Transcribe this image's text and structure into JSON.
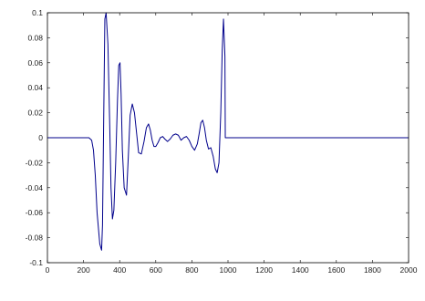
{
  "chart_data": {
    "type": "line",
    "title": "",
    "xlabel": "",
    "ylabel": "",
    "xlim": [
      0,
      2000
    ],
    "ylim": [
      -0.1,
      0.1
    ],
    "grid": false,
    "legend": "none",
    "x_ticks": [
      "0",
      "200",
      "400",
      "600",
      "800",
      "1000",
      "1200",
      "1400",
      "1600",
      "1800",
      "2000"
    ],
    "y_ticks": [
      "0.1",
      "0.08",
      "0.06",
      "0.04",
      "0.02",
      "0",
      "-0.02",
      "-0.04",
      "-0.06",
      "-0.08",
      "-0.1"
    ],
    "series": [
      {
        "color": "#00008b",
        "x": [
          0,
          230,
          245,
          255,
          265,
          275,
          290,
          300,
          305,
          312,
          318,
          325,
          335,
          345,
          352,
          360,
          368,
          378,
          388,
          395,
          402,
          408,
          415,
          425,
          438,
          448,
          458,
          470,
          482,
          495,
          505,
          520,
          535,
          548,
          560,
          570,
          580,
          590,
          600,
          612,
          625,
          638,
          650,
          665,
          680,
          695,
          710,
          725,
          740,
          755,
          770,
          785,
          800,
          815,
          830,
          840,
          850,
          860,
          870,
          880,
          892,
          905,
          918,
          930,
          940,
          950,
          960,
          968,
          975,
          983,
          985,
          2000
        ],
        "y": [
          0,
          0,
          -0.002,
          -0.01,
          -0.03,
          -0.06,
          -0.085,
          -0.09,
          -0.07,
          0.02,
          0.095,
          0.1,
          0.075,
          0.01,
          -0.04,
          -0.065,
          -0.058,
          -0.02,
          0.03,
          0.058,
          0.06,
          0.035,
          -0.01,
          -0.04,
          -0.046,
          -0.015,
          0.018,
          0.027,
          0.02,
          0.002,
          -0.012,
          -0.013,
          -0.003,
          0.008,
          0.011,
          0.006,
          -0.002,
          -0.007,
          -0.007,
          -0.004,
          0,
          0.001,
          -0.001,
          -0.003,
          -0.001,
          0.002,
          0.003,
          0.002,
          -0.002,
          0,
          0.001,
          -0.002,
          -0.007,
          -0.01,
          -0.005,
          0.003,
          0.012,
          0.014,
          0.008,
          -0.002,
          -0.009,
          -0.008,
          -0.015,
          -0.025,
          -0.028,
          -0.02,
          0.02,
          0.07,
          0.095,
          0.065,
          0,
          0
        ]
      }
    ]
  }
}
